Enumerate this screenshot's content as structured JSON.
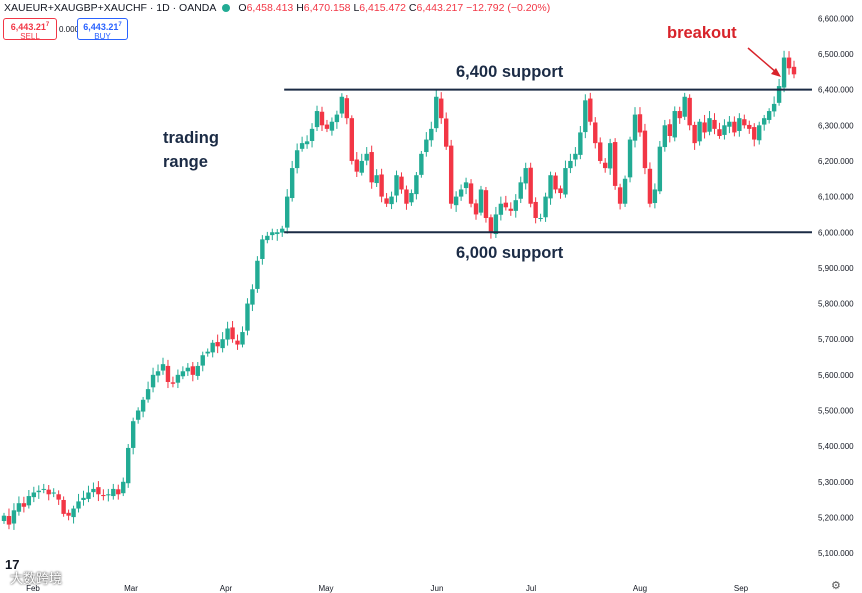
{
  "header": {
    "symbol": "XAUEUR+XAUGBP+XAUCHF · 1D · OANDA",
    "o_label": "O",
    "o_value": "6,458.413",
    "h_label": "H",
    "h_value": "6,470.158",
    "l_label": "L",
    "l_value": "6,415.472",
    "c_label": "C",
    "c_value": "6,443.217",
    "change": "−12.792 (−0.20%)"
  },
  "trade": {
    "sell_price": "6,443.21",
    "sell_sup": "7",
    "sell_label": "SELL",
    "spread": "0.000",
    "buy_price": "6,443.21",
    "buy_sup": "7",
    "buy_label": "BUY"
  },
  "annotations": {
    "breakout": "breakout",
    "support_top": "6,400 support",
    "support_bottom": "6,000 support",
    "trading_range_1": "trading",
    "trading_range_2": "range"
  },
  "watermark": "大数跨境",
  "logo": "17",
  "colors": {
    "up": "#22ab94",
    "down": "#f23645",
    "line": "#1b2b45",
    "breakout": "#d8232a"
  },
  "chart_data": {
    "type": "candlestick",
    "title": "XAUEUR+XAUGBP+XAUCHF · 1D · OANDA",
    "x_tick_labels": [
      "Feb",
      "Mar",
      "Apr",
      "May",
      "Jun",
      "Jul",
      "Aug",
      "Sep"
    ],
    "y_ticks": [
      "6,600.000",
      "6,500.000",
      "6,400.000",
      "6,300.000",
      "6,200.000",
      "6,100.000",
      "6,000.000",
      "5,900.000",
      "5,800.000",
      "5,700.000",
      "5,600.000",
      "5,500.000",
      "5,400.000",
      "5,300.000",
      "5,200.000",
      "5,100.000"
    ],
    "ylim": [
      5080,
      6640
    ],
    "grid": false,
    "horizontal_levels": [
      6400,
      6000
    ],
    "range_start_index": 58,
    "close_series": [
      5205,
      5180,
      5220,
      5240,
      5230,
      5260,
      5270,
      5275,
      5280,
      5265,
      5270,
      5250,
      5210,
      5205,
      5225,
      5245,
      5255,
      5270,
      5280,
      5265,
      5260,
      5265,
      5280,
      5265,
      5300,
      5395,
      5470,
      5500,
      5530,
      5560,
      5600,
      5610,
      5630,
      5580,
      5575,
      5600,
      5610,
      5620,
      5600,
      5625,
      5655,
      5665,
      5690,
      5680,
      5700,
      5730,
      5700,
      5685,
      5720,
      5800,
      5840,
      5920,
      5980,
      5990,
      6000,
      6000,
      6010,
      6100,
      6180,
      6230,
      6250,
      6255,
      6290,
      6340,
      6300,
      6290,
      6310,
      6330,
      6380,
      6320,
      6200,
      6170,
      6200,
      6220,
      6140,
      6160,
      6100,
      6080,
      6100,
      6160,
      6120,
      6080,
      6110,
      6160,
      6220,
      6260,
      6290,
      6380,
      6320,
      6240,
      6080,
      6100,
      6120,
      6140,
      6080,
      6050,
      6120,
      6040,
      6000,
      6050,
      6080,
      6070,
      6060,
      6090,
      6140,
      6180,
      6080,
      6040,
      6040,
      6100,
      6160,
      6120,
      6110,
      6180,
      6200,
      6220,
      6280,
      6370,
      6310,
      6250,
      6200,
      6180,
      6250,
      6130,
      6080,
      6150,
      6260,
      6330,
      6280,
      6180,
      6080,
      6120,
      6240,
      6300,
      6270,
      6340,
      6320,
      6380,
      6300,
      6250,
      6310,
      6280,
      6320,
      6290,
      6270,
      6300,
      6310,
      6280,
      6320,
      6300,
      6290,
      6260,
      6300,
      6320,
      6340,
      6360,
      6410,
      6490,
      6460,
      6443
    ]
  }
}
